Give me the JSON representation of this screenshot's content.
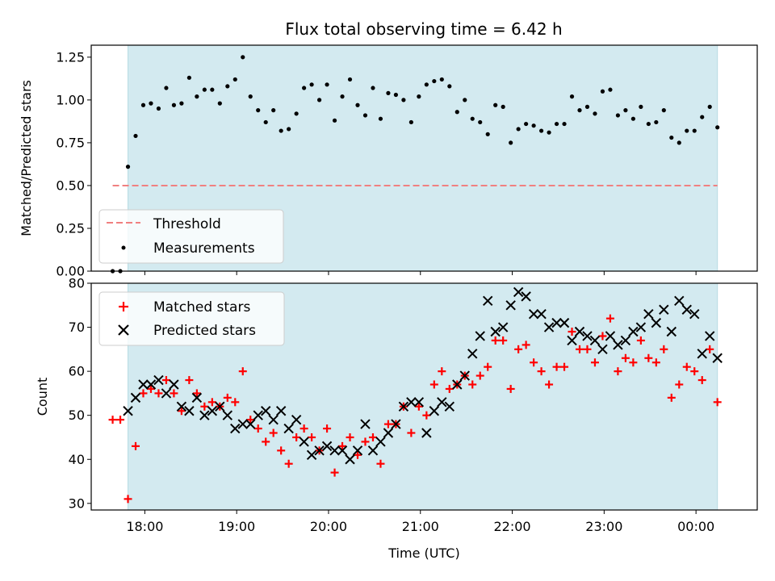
{
  "chart_data": [
    {
      "type": "scatter",
      "title": "Flux total observing time = 6.42 h",
      "xlabel": "",
      "ylabel": "Matched/Predicted stars",
      "xlim": [
        "17:25",
        "00:40"
      ],
      "ylim": [
        0.0,
        1.32
      ],
      "yticks": [
        "0.00",
        "0.25",
        "0.50",
        "0.75",
        "1.00",
        "1.25"
      ],
      "legend_position": "lower-left",
      "shaded_region": {
        "start": "17:49",
        "end": "00:14",
        "color": "#d3eaf0"
      },
      "threshold": {
        "name": "Threshold",
        "value": 0.5,
        "x": [
          "17:39",
          "00:14"
        ],
        "color": "#f08080"
      },
      "series": [
        {
          "name": "Measurements",
          "color": "#000000",
          "points": [
            [
              "17:39",
              0.0
            ],
            [
              "17:44",
              0.0
            ],
            [
              "17:49",
              0.61
            ],
            [
              "17:54",
              0.79
            ],
            [
              "17:59",
              0.97
            ],
            [
              "18:04",
              0.98
            ],
            [
              "18:09",
              0.95
            ],
            [
              "18:14",
              1.07
            ],
            [
              "18:19",
              0.97
            ],
            [
              "18:24",
              0.98
            ],
            [
              "18:29",
              1.13
            ],
            [
              "18:34",
              1.02
            ],
            [
              "18:39",
              1.06
            ],
            [
              "18:44",
              1.06
            ],
            [
              "18:49",
              0.98
            ],
            [
              "18:54",
              1.08
            ],
            [
              "18:59",
              1.12
            ],
            [
              "19:04",
              1.25
            ],
            [
              "19:09",
              1.02
            ],
            [
              "19:14",
              0.94
            ],
            [
              "19:19",
              0.87
            ],
            [
              "19:24",
              0.94
            ],
            [
              "19:29",
              0.82
            ],
            [
              "19:34",
              0.83
            ],
            [
              "19:39",
              0.92
            ],
            [
              "19:44",
              1.07
            ],
            [
              "19:49",
              1.09
            ],
            [
              "19:54",
              1.0
            ],
            [
              "19:59",
              1.09
            ],
            [
              "20:04",
              0.88
            ],
            [
              "20:09",
              1.02
            ],
            [
              "20:14",
              1.12
            ],
            [
              "20:19",
              0.97
            ],
            [
              "20:24",
              0.91
            ],
            [
              "20:29",
              1.07
            ],
            [
              "20:34",
              0.89
            ],
            [
              "20:39",
              1.04
            ],
            [
              "20:44",
              1.03
            ],
            [
              "20:49",
              1.0
            ],
            [
              "20:54",
              0.87
            ],
            [
              "20:59",
              1.02
            ],
            [
              "21:04",
              1.09
            ],
            [
              "21:09",
              1.11
            ],
            [
              "21:14",
              1.12
            ],
            [
              "21:19",
              1.08
            ],
            [
              "21:24",
              0.93
            ],
            [
              "21:29",
              1.0
            ],
            [
              "21:34",
              0.89
            ],
            [
              "21:39",
              0.87
            ],
            [
              "21:44",
              0.8
            ],
            [
              "21:49",
              0.97
            ],
            [
              "21:54",
              0.96
            ],
            [
              "21:59",
              0.75
            ],
            [
              "22:04",
              0.83
            ],
            [
              "22:09",
              0.86
            ],
            [
              "22:14",
              0.85
            ],
            [
              "22:19",
              0.82
            ],
            [
              "22:24",
              0.81
            ],
            [
              "22:29",
              0.86
            ],
            [
              "22:34",
              0.86
            ],
            [
              "22:39",
              1.02
            ],
            [
              "22:44",
              0.94
            ],
            [
              "22:49",
              0.96
            ],
            [
              "22:54",
              0.92
            ],
            [
              "22:59",
              1.05
            ],
            [
              "23:04",
              1.06
            ],
            [
              "23:09",
              0.91
            ],
            [
              "23:14",
              0.94
            ],
            [
              "23:19",
              0.89
            ],
            [
              "23:24",
              0.96
            ],
            [
              "23:29",
              0.86
            ],
            [
              "23:34",
              0.87
            ],
            [
              "23:39",
              0.94
            ],
            [
              "23:44",
              0.78
            ],
            [
              "23:49",
              0.75
            ],
            [
              "23:54",
              0.82
            ],
            [
              "23:59",
              0.82
            ],
            [
              "00:04",
              0.9
            ],
            [
              "00:09",
              0.96
            ],
            [
              "00:14",
              0.84
            ]
          ]
        }
      ]
    },
    {
      "type": "scatter",
      "title": "",
      "xlabel": "Time (UTC)",
      "ylabel": "Count",
      "xlim": [
        "17:25",
        "00:40"
      ],
      "ylim": [
        28.5,
        80.0
      ],
      "xticks": [
        "18:00",
        "19:00",
        "20:00",
        "21:00",
        "22:00",
        "23:00",
        "00:00"
      ],
      "yticks": [
        "30",
        "40",
        "50",
        "60",
        "70",
        "80"
      ],
      "legend_position": "top-left",
      "shaded_region": {
        "start": "17:49",
        "end": "00:14",
        "color": "#d3eaf0"
      },
      "series": [
        {
          "name": "Matched stars",
          "marker": "plus",
          "color": "#ff0000",
          "points": [
            [
              "17:39",
              49
            ],
            [
              "17:44",
              49
            ],
            [
              "17:49",
              31
            ],
            [
              "17:54",
              43
            ],
            [
              "17:59",
              55
            ],
            [
              "18:04",
              56
            ],
            [
              "18:09",
              55
            ],
            [
              "18:14",
              58
            ],
            [
              "18:19",
              55
            ],
            [
              "18:24",
              51
            ],
            [
              "18:29",
              58
            ],
            [
              "18:34",
              55
            ],
            [
              "18:39",
              52
            ],
            [
              "18:44",
              53
            ],
            [
              "18:49",
              52
            ],
            [
              "18:54",
              54
            ],
            [
              "18:59",
              53
            ],
            [
              "19:04",
              60
            ],
            [
              "19:09",
              49
            ],
            [
              "19:14",
              47
            ],
            [
              "19:19",
              44
            ],
            [
              "19:24",
              46
            ],
            [
              "19:29",
              42
            ],
            [
              "19:34",
              39
            ],
            [
              "19:39",
              45
            ],
            [
              "19:44",
              47
            ],
            [
              "19:49",
              45
            ],
            [
              "19:54",
              42
            ],
            [
              "19:59",
              47
            ],
            [
              "20:04",
              37
            ],
            [
              "20:09",
              43
            ],
            [
              "20:14",
              45
            ],
            [
              "20:19",
              41
            ],
            [
              "20:24",
              44
            ],
            [
              "20:29",
              45
            ],
            [
              "20:34",
              39
            ],
            [
              "20:39",
              48
            ],
            [
              "20:44",
              48
            ],
            [
              "20:49",
              52
            ],
            [
              "20:54",
              46
            ],
            [
              "20:59",
              52
            ],
            [
              "21:04",
              50
            ],
            [
              "21:09",
              57
            ],
            [
              "21:14",
              60
            ],
            [
              "21:19",
              56
            ],
            [
              "21:24",
              57
            ],
            [
              "21:29",
              59
            ],
            [
              "21:34",
              57
            ],
            [
              "21:39",
              59
            ],
            [
              "21:44",
              61
            ],
            [
              "21:49",
              67
            ],
            [
              "21:54",
              67
            ],
            [
              "21:59",
              56
            ],
            [
              "22:04",
              65
            ],
            [
              "22:09",
              66
            ],
            [
              "22:14",
              62
            ],
            [
              "22:19",
              60
            ],
            [
              "22:24",
              57
            ],
            [
              "22:29",
              61
            ],
            [
              "22:34",
              61
            ],
            [
              "22:39",
              69
            ],
            [
              "22:44",
              65
            ],
            [
              "22:49",
              65
            ],
            [
              "22:54",
              62
            ],
            [
              "22:59",
              68
            ],
            [
              "23:04",
              72
            ],
            [
              "23:09",
              60
            ],
            [
              "23:14",
              63
            ],
            [
              "23:19",
              62
            ],
            [
              "23:24",
              67
            ],
            [
              "23:29",
              63
            ],
            [
              "23:34",
              62
            ],
            [
              "23:39",
              65
            ],
            [
              "23:44",
              54
            ],
            [
              "23:49",
              57
            ],
            [
              "23:54",
              61
            ],
            [
              "23:59",
              60
            ],
            [
              "00:04",
              58
            ],
            [
              "00:09",
              65
            ],
            [
              "00:14",
              53
            ]
          ]
        },
        {
          "name": "Predicted stars",
          "marker": "x",
          "color": "#000000",
          "points": [
            [
              "17:49",
              51
            ],
            [
              "17:54",
              54
            ],
            [
              "17:59",
              57
            ],
            [
              "18:04",
              57
            ],
            [
              "18:09",
              58
            ],
            [
              "18:14",
              55
            ],
            [
              "18:19",
              57
            ],
            [
              "18:24",
              52
            ],
            [
              "18:29",
              51
            ],
            [
              "18:34",
              54
            ],
            [
              "18:39",
              50
            ],
            [
              "18:44",
              51
            ],
            [
              "18:49",
              52
            ],
            [
              "18:54",
              50
            ],
            [
              "18:59",
              47
            ],
            [
              "19:04",
              48
            ],
            [
              "19:09",
              48
            ],
            [
              "19:14",
              50
            ],
            [
              "19:19",
              51
            ],
            [
              "19:24",
              49
            ],
            [
              "19:29",
              51
            ],
            [
              "19:34",
              47
            ],
            [
              "19:39",
              49
            ],
            [
              "19:44",
              44
            ],
            [
              "19:49",
              41
            ],
            [
              "19:54",
              42
            ],
            [
              "19:59",
              43
            ],
            [
              "20:04",
              42
            ],
            [
              "20:09",
              42
            ],
            [
              "20:14",
              40
            ],
            [
              "20:19",
              42
            ],
            [
              "20:24",
              48
            ],
            [
              "20:29",
              42
            ],
            [
              "20:34",
              44
            ],
            [
              "20:39",
              46
            ],
            [
              "20:44",
              48
            ],
            [
              "20:49",
              52
            ],
            [
              "20:54",
              53
            ],
            [
              "20:59",
              53
            ],
            [
              "21:04",
              46
            ],
            [
              "21:09",
              51
            ],
            [
              "21:14",
              53
            ],
            [
              "21:19",
              52
            ],
            [
              "21:24",
              57
            ],
            [
              "21:29",
              59
            ],
            [
              "21:34",
              64
            ],
            [
              "21:39",
              68
            ],
            [
              "21:44",
              76
            ],
            [
              "21:49",
              69
            ],
            [
              "21:54",
              70
            ],
            [
              "21:59",
              75
            ],
            [
              "22:04",
              78
            ],
            [
              "22:09",
              77
            ],
            [
              "22:14",
              73
            ],
            [
              "22:19",
              73
            ],
            [
              "22:24",
              70
            ],
            [
              "22:29",
              71
            ],
            [
              "22:34",
              71
            ],
            [
              "22:39",
              67
            ],
            [
              "22:44",
              69
            ],
            [
              "22:49",
              68
            ],
            [
              "22:54",
              67
            ],
            [
              "22:59",
              65
            ],
            [
              "23:04",
              68
            ],
            [
              "23:09",
              66
            ],
            [
              "23:14",
              67
            ],
            [
              "23:19",
              69
            ],
            [
              "23:24",
              70
            ],
            [
              "23:29",
              73
            ],
            [
              "23:34",
              71
            ],
            [
              "23:39",
              74
            ],
            [
              "23:44",
              69
            ],
            [
              "23:49",
              76
            ],
            [
              "23:54",
              74
            ],
            [
              "23:59",
              73
            ],
            [
              "00:04",
              64
            ],
            [
              "00:09",
              68
            ],
            [
              "00:14",
              63
            ]
          ]
        }
      ]
    }
  ]
}
